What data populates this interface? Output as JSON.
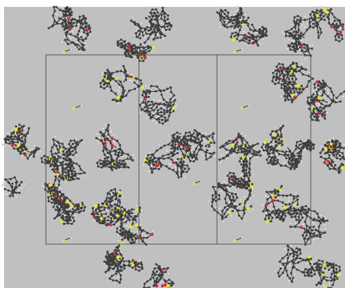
{
  "viewer": {
    "scene_type": "crystal-packing",
    "background_color": "#c0c0c0",
    "frame_color": "#ffffff",
    "cell_line_color": "#505050",
    "bond_color": "#3a3a3a",
    "atom_colors": {
      "carbon": "#3d3d3d",
      "hydrogen": "#ececec",
      "sulfur": "#e6e632",
      "oxygen": "#d82a2a"
    },
    "unit_cells_shown": 2
  }
}
